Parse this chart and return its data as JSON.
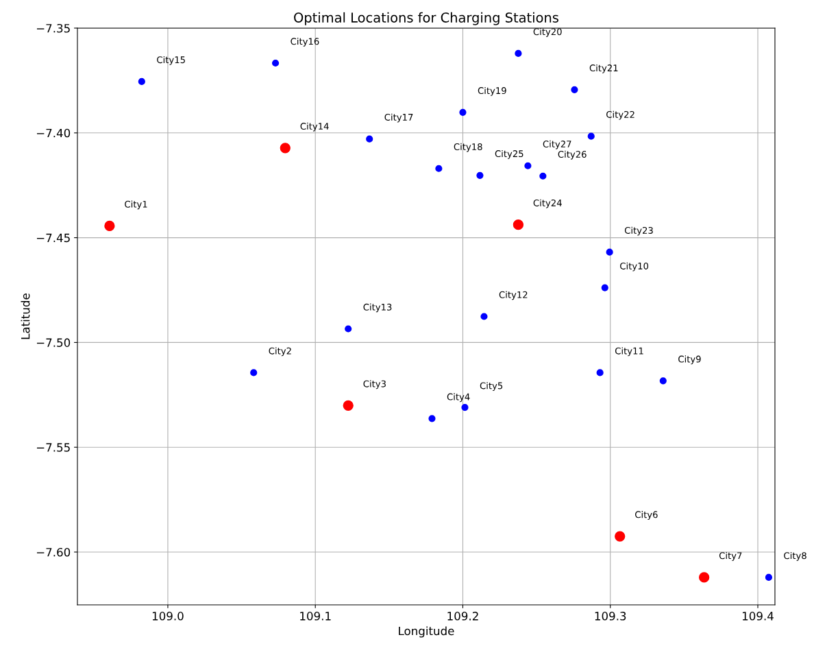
{
  "chart_data": {
    "type": "scatter",
    "title": "Optimal Locations for Charging Stations",
    "xlabel": "Longitude",
    "ylabel": "Latitude",
    "xlim": [
      108.9387,
      109.4116
    ],
    "ylim": [
      -7.6252,
      -7.35
    ],
    "xticks": [
      {
        "value": 109.0,
        "label": "109.0"
      },
      {
        "value": 109.1,
        "label": "109.1"
      },
      {
        "value": 109.2,
        "label": "109.2"
      },
      {
        "value": 109.3,
        "label": "109.3"
      },
      {
        "value": 109.4,
        "label": "109.4"
      }
    ],
    "yticks": [
      {
        "value": -7.35,
        "label": "−7.35"
      },
      {
        "value": -7.4,
        "label": "−7.40"
      },
      {
        "value": -7.45,
        "label": "−7.45"
      },
      {
        "value": -7.5,
        "label": "−7.50"
      },
      {
        "value": -7.55,
        "label": "−7.55"
      },
      {
        "value": -7.6,
        "label": "−7.60"
      }
    ],
    "grid": true,
    "marker": "circle",
    "series": [
      {
        "color": "#0000ff",
        "x": [
          109.0582,
          109.1791,
          109.2014,
          109.4074,
          109.3358,
          109.2963,
          109.293,
          109.2144,
          109.1223,
          108.9823,
          109.073,
          109.1367,
          109.1837,
          109.2,
          109.2376,
          109.2757,
          109.287,
          109.2995,
          109.2116,
          109.2543,
          109.2441
        ],
        "values": [
          -7.5144,
          -7.5363,
          -7.531,
          -7.6121,
          -7.5183,
          -7.4739,
          -7.5144,
          -7.4876,
          -7.4935,
          -7.3755,
          -7.3667,
          -7.4029,
          -7.417,
          -7.3902,
          -7.3621,
          -7.3794,
          -7.4016,
          -7.4569,
          -7.4203,
          -7.4206,
          -7.4157
        ]
      },
      {
        "color": "#ff0000",
        "x": [
          108.9605,
          109.1223,
          109.3065,
          109.3636,
          109.0796,
          109.2376
        ],
        "values": [
          -7.4444,
          -7.5301,
          -7.5925,
          -7.6121,
          -7.4072,
          -7.4438
        ]
      }
    ],
    "annotations": [
      {
        "text": "City1",
        "x": 108.9605,
        "y": -7.4444
      },
      {
        "text": "City2",
        "x": 109.0582,
        "y": -7.5144
      },
      {
        "text": "City3",
        "x": 109.1223,
        "y": -7.5301
      },
      {
        "text": "City4",
        "x": 109.1791,
        "y": -7.5363
      },
      {
        "text": "City5",
        "x": 109.2014,
        "y": -7.531
      },
      {
        "text": "City6",
        "x": 109.3065,
        "y": -7.5925
      },
      {
        "text": "City7",
        "x": 109.3636,
        "y": -7.6121
      },
      {
        "text": "City8",
        "x": 109.4074,
        "y": -7.6121
      },
      {
        "text": "City9",
        "x": 109.3358,
        "y": -7.5183
      },
      {
        "text": "City10",
        "x": 109.2963,
        "y": -7.4739
      },
      {
        "text": "City11",
        "x": 109.293,
        "y": -7.5144
      },
      {
        "text": "City12",
        "x": 109.2144,
        "y": -7.4876
      },
      {
        "text": "City13",
        "x": 109.1223,
        "y": -7.4935
      },
      {
        "text": "City14",
        "x": 109.0796,
        "y": -7.4072
      },
      {
        "text": "City15",
        "x": 108.9823,
        "y": -7.3755
      },
      {
        "text": "City16",
        "x": 109.073,
        "y": -7.3667
      },
      {
        "text": "City17",
        "x": 109.1367,
        "y": -7.4029
      },
      {
        "text": "City18",
        "x": 109.1837,
        "y": -7.417
      },
      {
        "text": "City19",
        "x": 109.2,
        "y": -7.3902
      },
      {
        "text": "City20",
        "x": 109.2376,
        "y": -7.3621
      },
      {
        "text": "City21",
        "x": 109.2757,
        "y": -7.3794
      },
      {
        "text": "City22",
        "x": 109.287,
        "y": -7.4016
      },
      {
        "text": "City23",
        "x": 109.2995,
        "y": -7.4569
      },
      {
        "text": "City24",
        "x": 109.2376,
        "y": -7.4438
      },
      {
        "text": "City25",
        "x": 109.2116,
        "y": -7.4203
      },
      {
        "text": "City26",
        "x": 109.2543,
        "y": -7.4206
      },
      {
        "text": "City27",
        "x": 109.2441,
        "y": -7.4157
      }
    ]
  }
}
